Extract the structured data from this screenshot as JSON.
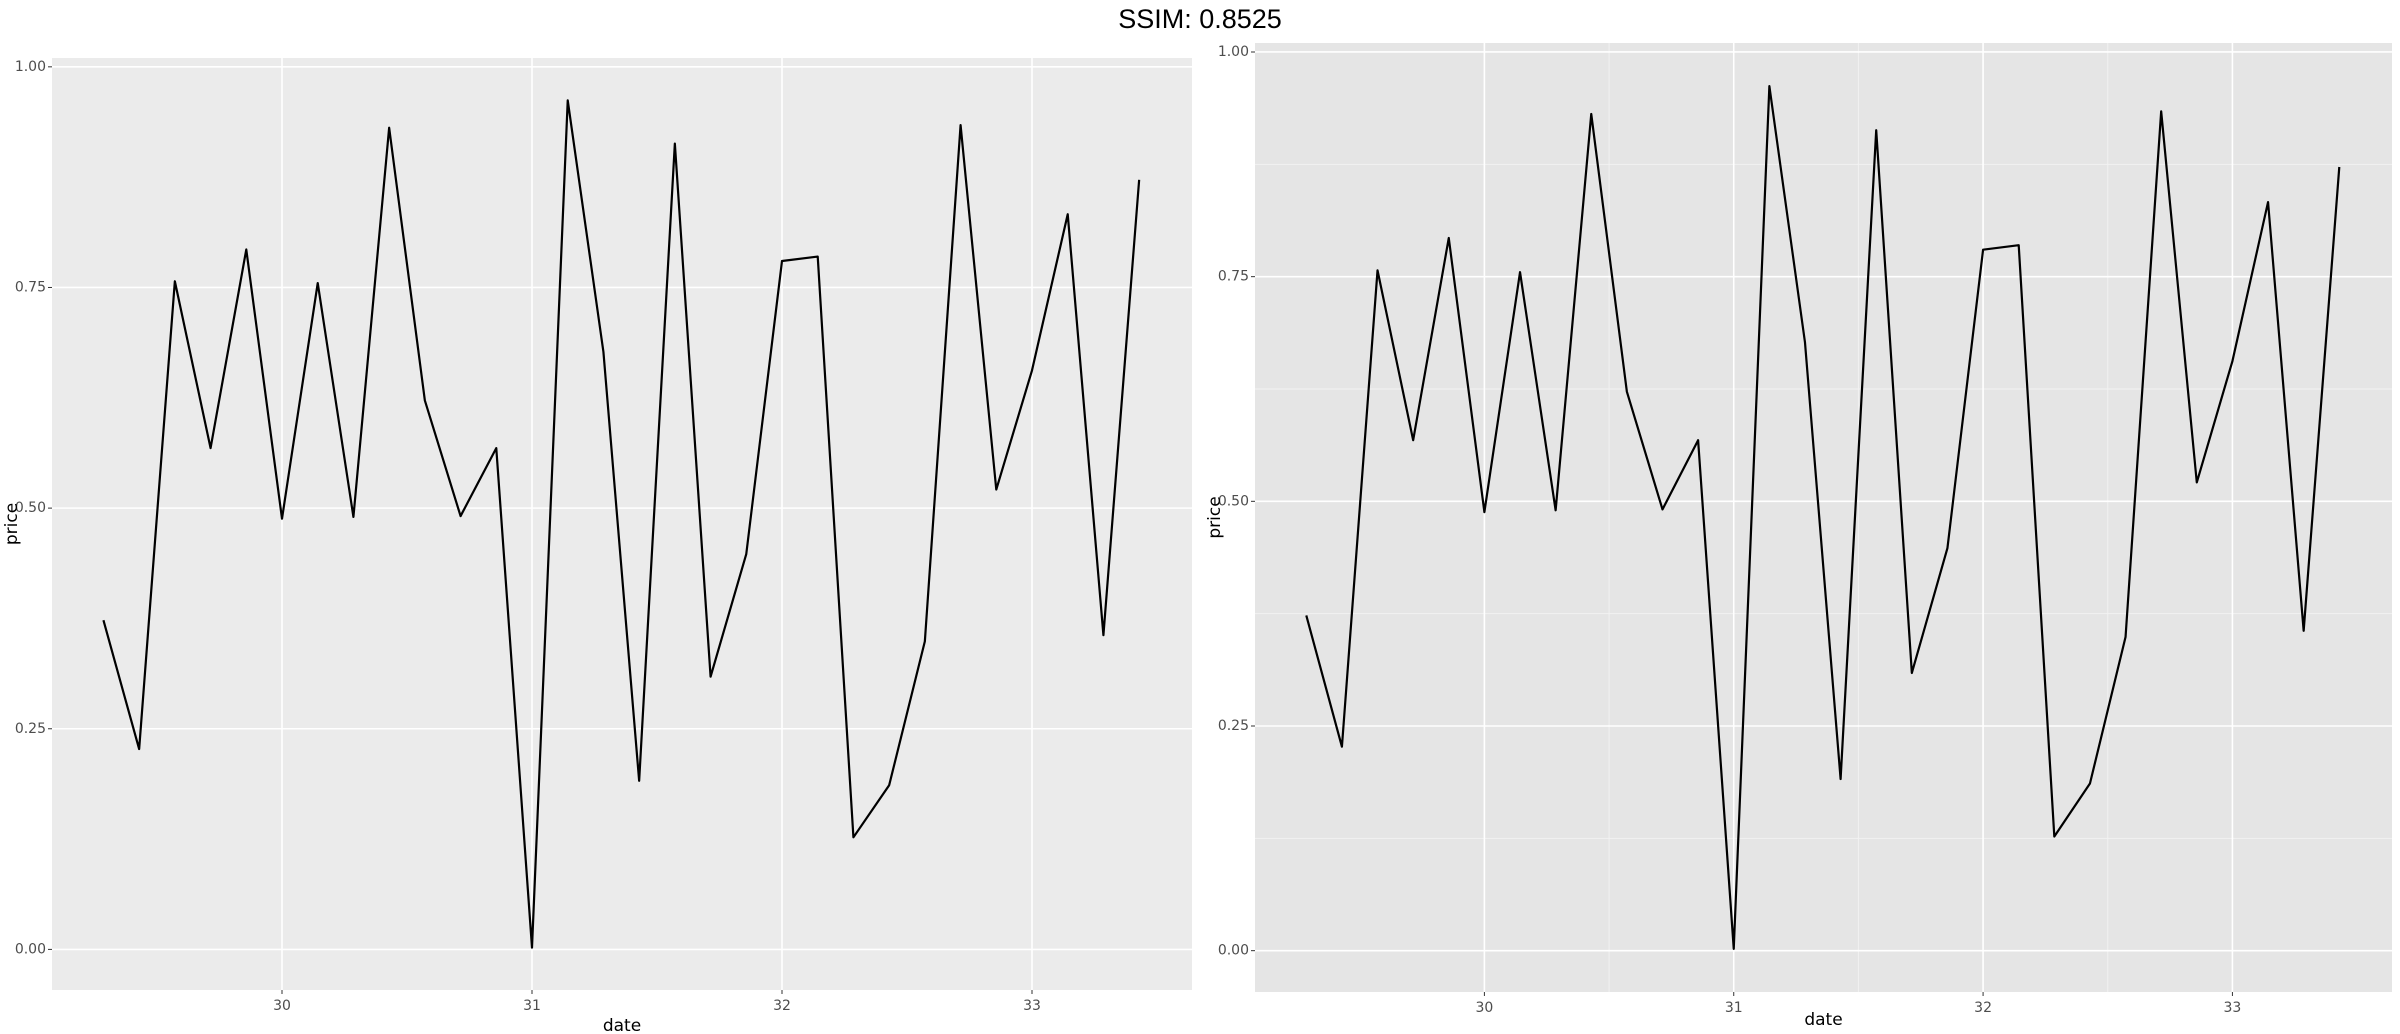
{
  "title": "SSIM: 0.8525",
  "chart_data": [
    {
      "type": "line",
      "x_label": "date",
      "y_label": "price",
      "x": [
        29.2857,
        29.4286,
        29.5714,
        29.7143,
        29.8571,
        30.0,
        30.1429,
        30.2857,
        30.4286,
        30.5714,
        30.7143,
        30.8571,
        31.0,
        31.1429,
        31.2857,
        31.4286,
        31.5714,
        31.7143,
        31.8571,
        32.0,
        32.1429,
        32.2857,
        32.4286,
        32.5714,
        32.7143,
        32.8571,
        33.0,
        33.1429,
        33.2857,
        33.4286
      ],
      "values": [
        0.373,
        0.227,
        0.757,
        0.568,
        0.793,
        0.488,
        0.755,
        0.49,
        0.931,
        0.622,
        0.491,
        0.568,
        0.002,
        0.962,
        0.677,
        0.191,
        0.913,
        0.309,
        0.448,
        0.78,
        0.785,
        0.127,
        0.186,
        0.349,
        0.934,
        0.521,
        0.656,
        0.833,
        0.356,
        0.872
      ],
      "color": "#000000",
      "xlim": [
        29.08,
        33.64
      ],
      "ylim": [
        -0.046,
        1.01
      ],
      "xticks": [
        30,
        31,
        32,
        33
      ],
      "yticks": [
        {
          "value": 0,
          "label": "0.00"
        },
        {
          "value": 0.25,
          "label": "0.25"
        },
        {
          "value": 0.5,
          "label": "0.50"
        },
        {
          "value": 0.75,
          "label": "0.75"
        },
        {
          "value": 1,
          "label": "1.00"
        }
      ],
      "grid": true,
      "minor_grid": false,
      "panel_color": "#ebebeb"
    },
    {
      "type": "line",
      "x_label": "date",
      "y_label": "price",
      "x": [
        29.2857,
        29.4286,
        29.5714,
        29.7143,
        29.8571,
        30.0,
        30.1429,
        30.2857,
        30.4286,
        30.5714,
        30.7143,
        30.8571,
        31.0,
        31.1429,
        31.2857,
        31.4286,
        31.5714,
        31.7143,
        31.8571,
        32.0,
        32.1429,
        32.2857,
        32.4286,
        32.5714,
        32.7143,
        32.8571,
        33.0,
        33.1429,
        33.2857,
        33.4286
      ],
      "values": [
        0.373,
        0.227,
        0.757,
        0.568,
        0.793,
        0.488,
        0.755,
        0.49,
        0.931,
        0.622,
        0.491,
        0.568,
        0.002,
        0.962,
        0.677,
        0.191,
        0.913,
        0.309,
        0.448,
        0.78,
        0.785,
        0.127,
        0.186,
        0.349,
        0.934,
        0.521,
        0.656,
        0.833,
        0.356,
        0.872
      ],
      "color": "#000000",
      "xlim": [
        29.08,
        33.64
      ],
      "ylim": [
        -0.046,
        1.01
      ],
      "xticks": [
        30,
        31,
        32,
        33
      ],
      "yticks": [
        {
          "value": 0,
          "label": "0.00"
        },
        {
          "value": 0.25,
          "label": "0.25"
        },
        {
          "value": 0.5,
          "label": "0.50"
        },
        {
          "value": 0.75,
          "label": "0.75"
        },
        {
          "value": 1,
          "label": "1.00"
        }
      ],
      "grid": true,
      "minor_grid": true,
      "panel_color": "#e5e5e5"
    }
  ]
}
